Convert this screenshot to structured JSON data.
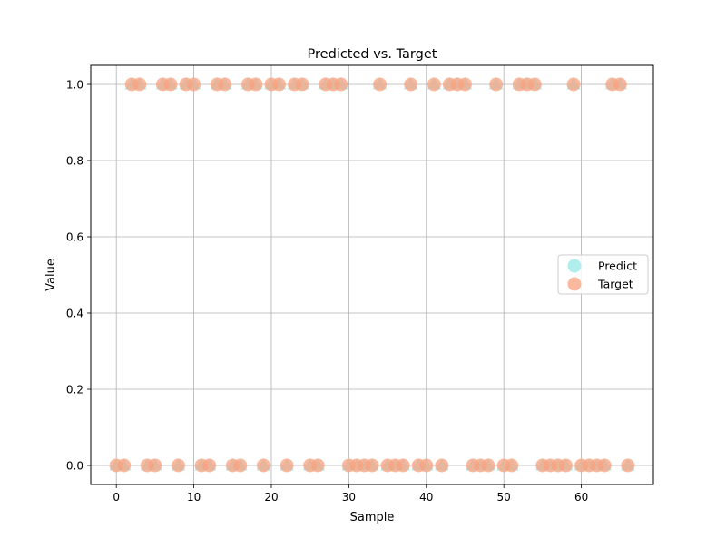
{
  "chart_data": {
    "type": "scatter",
    "title": "Predicted vs. Target",
    "xlabel": "Sample",
    "ylabel": "Value",
    "xlim": [
      -3.3,
      69.3
    ],
    "ylim": [
      -0.05,
      1.05
    ],
    "xticks": [
      0,
      10,
      20,
      30,
      40,
      50,
      60
    ],
    "yticks": [
      0.0,
      0.2,
      0.4,
      0.6,
      0.8,
      1.0
    ],
    "ytick_labels": [
      "0.0",
      "0.2",
      "0.4",
      "0.6",
      "0.8",
      "1.0"
    ],
    "grid": true,
    "legend_position": "center-right",
    "series": [
      {
        "name": "Predict",
        "marker": "triangle",
        "legend_marker": "circle",
        "color": "#a6ecea",
        "x": [
          0,
          1,
          2,
          3,
          4,
          5,
          6,
          7,
          8,
          9,
          10,
          11,
          12,
          13,
          14,
          15,
          16,
          17,
          18,
          19,
          20,
          21,
          22,
          23,
          24,
          25,
          26,
          27,
          28,
          29,
          30,
          31,
          32,
          33,
          34,
          35,
          36,
          37,
          38,
          39,
          40,
          41,
          42,
          43,
          44,
          45,
          46,
          47,
          48,
          49,
          50,
          51,
          52,
          53,
          54,
          55,
          56,
          57,
          58,
          59,
          60,
          61,
          62,
          63,
          64,
          65,
          66
        ],
        "y": [
          0,
          0,
          1,
          1,
          0,
          0,
          1,
          1,
          0,
          1,
          1,
          0,
          0,
          1,
          1,
          0,
          0,
          1,
          1,
          0,
          1,
          1,
          0,
          1,
          1,
          0,
          0,
          1,
          1,
          1,
          0,
          0,
          0,
          0,
          1,
          0,
          0,
          0,
          1,
          0,
          0,
          1,
          0,
          1,
          1,
          1,
          0,
          0,
          0,
          1,
          0,
          0,
          1,
          1,
          1,
          0,
          0,
          0,
          0,
          1,
          0,
          0,
          0,
          0,
          1,
          1,
          0
        ]
      },
      {
        "name": "Target",
        "marker": "circle",
        "legend_marker": "circle",
        "color": "#f8a27f",
        "x": [
          0,
          1,
          2,
          3,
          4,
          5,
          6,
          7,
          8,
          9,
          10,
          11,
          12,
          13,
          14,
          15,
          16,
          17,
          18,
          19,
          20,
          21,
          22,
          23,
          24,
          25,
          26,
          27,
          28,
          29,
          30,
          31,
          32,
          33,
          34,
          35,
          36,
          37,
          38,
          39,
          40,
          41,
          42,
          43,
          44,
          45,
          46,
          47,
          48,
          49,
          50,
          51,
          52,
          53,
          54,
          55,
          56,
          57,
          58,
          59,
          60,
          61,
          62,
          63,
          64,
          65,
          66
        ],
        "y": [
          0,
          0,
          1,
          1,
          0,
          0,
          1,
          1,
          0,
          1,
          1,
          0,
          0,
          1,
          1,
          0,
          0,
          1,
          1,
          0,
          1,
          1,
          0,
          1,
          1,
          0,
          0,
          1,
          1,
          1,
          0,
          0,
          0,
          0,
          1,
          0,
          0,
          0,
          1,
          0,
          0,
          1,
          0,
          1,
          1,
          1,
          0,
          0,
          0,
          1,
          0,
          0,
          1,
          1,
          1,
          0,
          0,
          0,
          0,
          1,
          0,
          0,
          0,
          0,
          1,
          1,
          0
        ]
      }
    ]
  }
}
